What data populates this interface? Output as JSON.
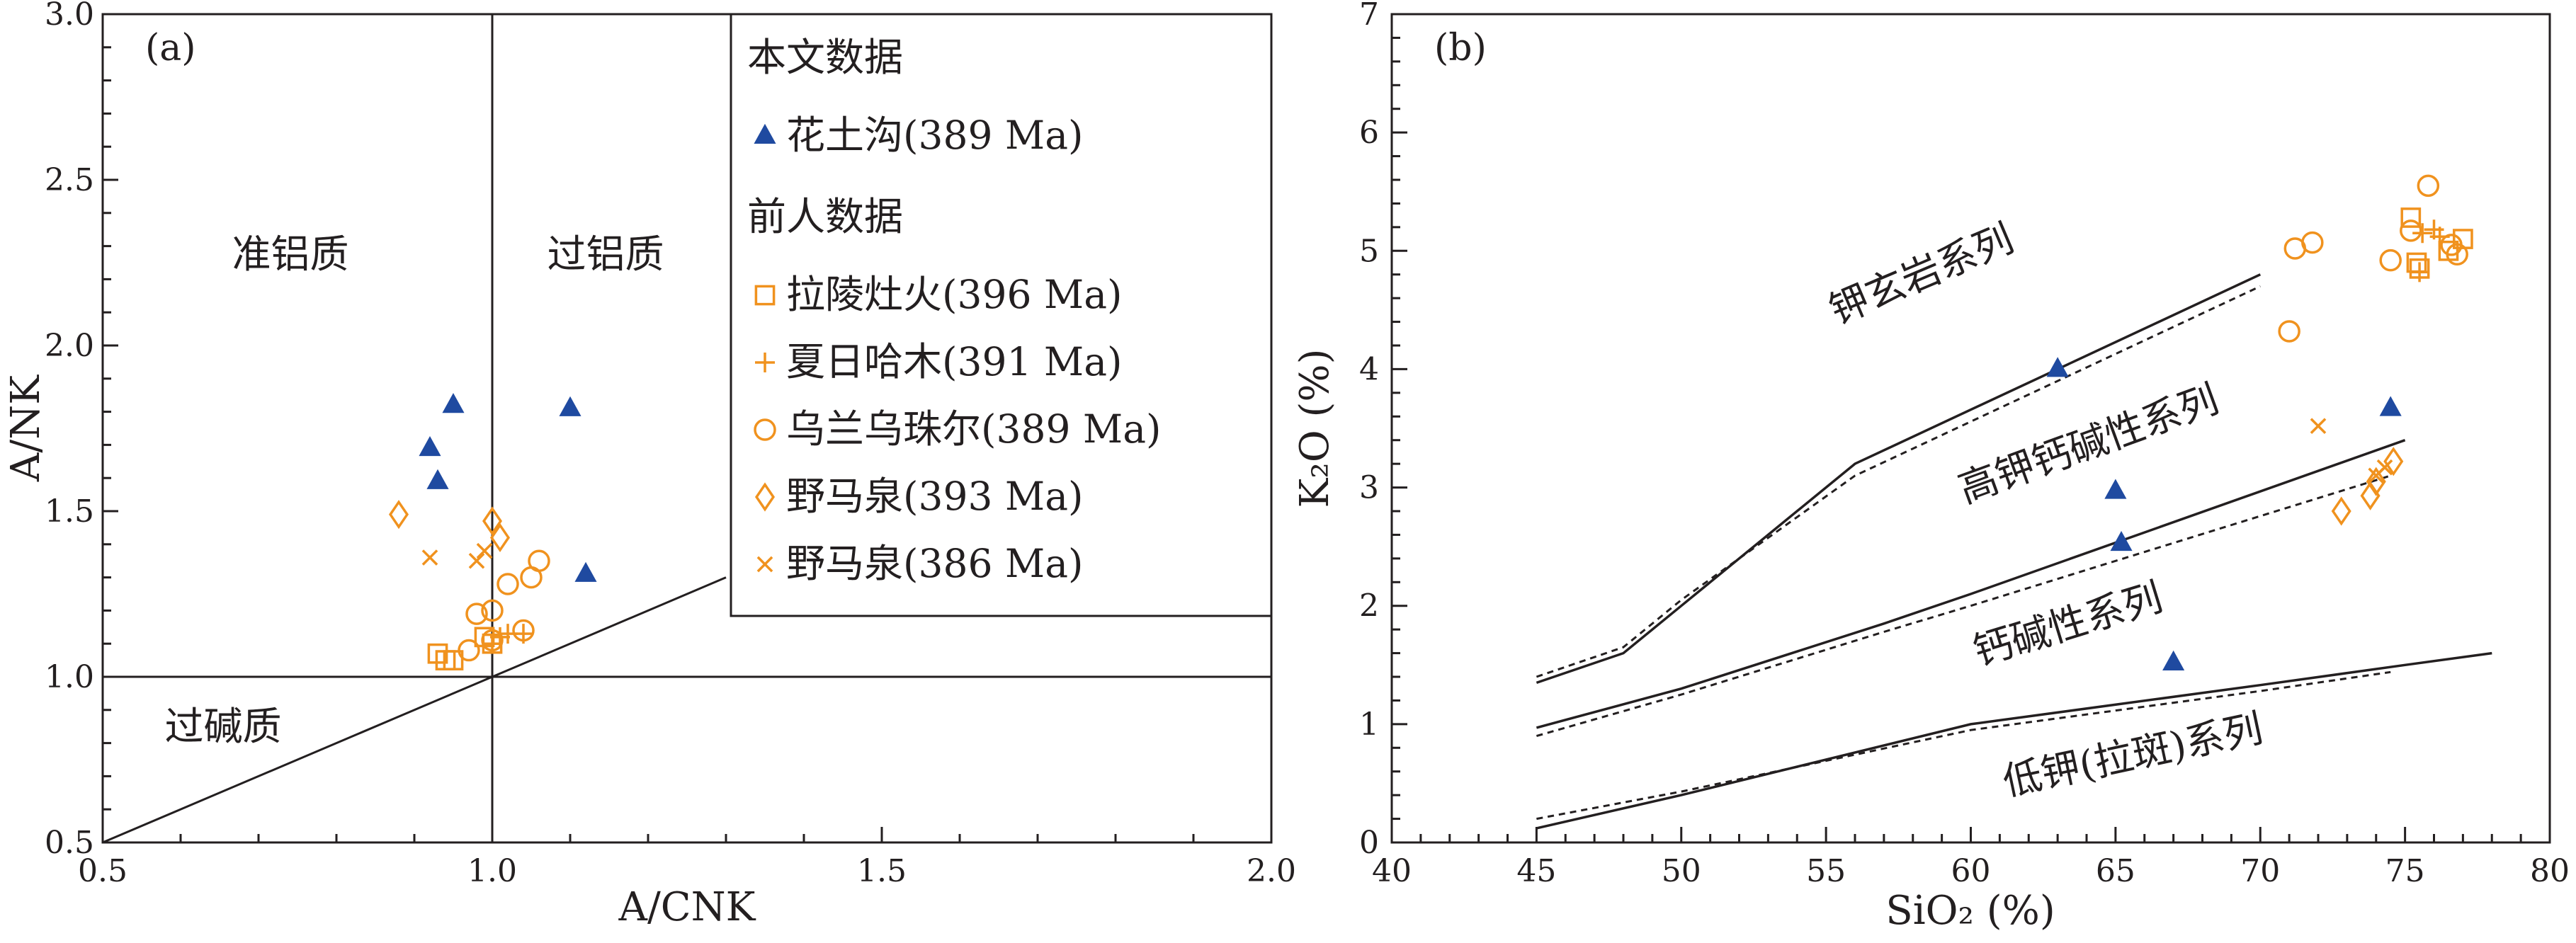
{
  "colors": {
    "this_study": "#1f4aa0",
    "previous": "#f0921e",
    "ink": "#231f20"
  },
  "chart_data": [
    {
      "type": "scatter",
      "panel_label": "(a)",
      "xlabel": "A/CNK",
      "ylabel": "A/NK",
      "xlim": [
        0.5,
        2.0
      ],
      "ylim": [
        0.5,
        3.0
      ],
      "x_ticks": [
        "0.5",
        "1.0",
        "1.5",
        "2.0"
      ],
      "y_ticks": [
        "0.5",
        "1.0",
        "1.5",
        "2.0",
        "2.5",
        "3.0"
      ],
      "region_labels": [
        "准铝质",
        "过铝质",
        "过碱质"
      ],
      "legend": {
        "position": "top-right",
        "group_headers": [
          "本文数据",
          "前人数据"
        ],
        "entries": [
          "花土沟(389 Ma)",
          "拉陵灶火(396 Ma)",
          "夏日哈木(391 Ma)",
          "乌兰乌珠尔(389 Ma)",
          "野马泉(393 Ma)",
          "野马泉(386 Ma)"
        ]
      },
      "series": [
        {
          "name": "花土沟(389 Ma)",
          "marker": "triangle",
          "points": [
            [
              0.92,
              1.69
            ],
            [
              0.95,
              1.82
            ],
            [
              0.93,
              1.59
            ],
            [
              1.1,
              1.81
            ],
            [
              1.12,
              1.31
            ]
          ]
        },
        {
          "name": "拉陵灶火(396 Ma)",
          "marker": "square",
          "points": [
            [
              0.94,
              1.05
            ],
            [
              0.95,
              1.05
            ],
            [
              0.93,
              1.07
            ],
            [
              0.99,
              1.12
            ],
            [
              1.0,
              1.1
            ]
          ]
        },
        {
          "name": "夏日哈木(391 Ma)",
          "marker": "plus",
          "points": [
            [
              1.01,
              1.12
            ],
            [
              1.0,
              1.1
            ],
            [
              1.02,
              1.13
            ],
            [
              1.04,
              1.13
            ]
          ]
        },
        {
          "name": "乌兰乌珠尔(389 Ma)",
          "marker": "circle",
          "points": [
            [
              0.97,
              1.08
            ],
            [
              0.98,
              1.19
            ],
            [
              1.0,
              1.2
            ],
            [
              1.02,
              1.28
            ],
            [
              1.05,
              1.3
            ],
            [
              1.06,
              1.35
            ],
            [
              1.04,
              1.14
            ],
            [
              1.0,
              1.11
            ]
          ]
        },
        {
          "name": "野马泉(393 Ma)",
          "marker": "diamond",
          "points": [
            [
              0.88,
              1.49
            ],
            [
              1.0,
              1.47
            ],
            [
              1.01,
              1.42
            ]
          ]
        },
        {
          "name": "野马泉(386 Ma)",
          "marker": "cross",
          "points": [
            [
              0.92,
              1.36
            ],
            [
              0.98,
              1.35
            ],
            [
              0.99,
              1.38
            ]
          ]
        }
      ]
    },
    {
      "type": "scatter",
      "panel_label": "(b)",
      "xlabel": "SiO₂ (%)",
      "ylabel": "K₂O (%)",
      "xlim": [
        40,
        80
      ],
      "ylim": [
        0,
        7
      ],
      "x_ticks": [
        "40",
        "45",
        "50",
        "55",
        "60",
        "65",
        "70",
        "75",
        "80"
      ],
      "y_ticks": [
        "0",
        "1",
        "2",
        "3",
        "4",
        "5",
        "6",
        "7"
      ],
      "series_labels": [
        "钾玄岩系列",
        "高钾钙碱性系列",
        "钙碱性系列",
        "低钾(拉斑)系列"
      ],
      "boundaries": {
        "solid": [
          [
            [
              45,
              1.35
            ],
            [
              48,
              1.6
            ],
            [
              50,
              2.0
            ],
            [
              56,
              3.2
            ],
            [
              70,
              4.8
            ]
          ],
          [
            [
              45,
              0.97
            ],
            [
              50,
              1.3
            ],
            [
              57,
              1.85
            ],
            [
              60,
              2.1
            ],
            [
              75,
              3.4
            ]
          ],
          [
            [
              45,
              0.12
            ],
            [
              50,
              0.4
            ],
            [
              60,
              1.0
            ],
            [
              70,
              1.33
            ],
            [
              75,
              1.5
            ],
            [
              78,
              1.6
            ]
          ]
        ],
        "dashed": [
          [
            [
              45,
              1.4
            ],
            [
              48,
              1.65
            ],
            [
              50,
              2.05
            ],
            [
              56,
              3.1
            ],
            [
              70,
              4.7
            ]
          ],
          [
            [
              45,
              0.9
            ],
            [
              50,
              1.25
            ],
            [
              57,
              1.78
            ],
            [
              60,
              2.0
            ],
            [
              74.5,
              3.1
            ]
          ],
          [
            [
              45,
              0.2
            ],
            [
              50,
              0.43
            ],
            [
              60,
              0.95
            ],
            [
              70,
              1.28
            ],
            [
              74.5,
              1.44
            ]
          ]
        ]
      },
      "series": [
        {
          "name": "花土沟(389 Ma)",
          "marker": "triangle",
          "points": [
            [
              63,
              4.0
            ],
            [
              65,
              2.97
            ],
            [
              65.2,
              2.53
            ],
            [
              67,
              1.52
            ],
            [
              74.5,
              3.67
            ]
          ]
        },
        {
          "name": "拉陵灶火(396 Ma)",
          "marker": "square",
          "points": [
            [
              75.2,
              5.28
            ],
            [
              75.4,
              4.9
            ],
            [
              75.5,
              4.85
            ],
            [
              76.5,
              5.0
            ],
            [
              77,
              5.1
            ]
          ]
        },
        {
          "name": "夏日哈木(391 Ma)",
          "marker": "plus",
          "points": [
            [
              75.6,
              5.15
            ],
            [
              76,
              5.18
            ],
            [
              76.2,
              5.12
            ],
            [
              75.5,
              4.82
            ]
          ]
        },
        {
          "name": "乌兰乌珠尔(389 Ma)",
          "marker": "circle",
          "points": [
            [
              71,
              4.32
            ],
            [
              71.2,
              5.02
            ],
            [
              71.8,
              5.07
            ],
            [
              74.5,
              4.92
            ],
            [
              75.8,
              5.55
            ],
            [
              75.2,
              5.17
            ],
            [
              76.6,
              5.05
            ],
            [
              76.8,
              4.97
            ]
          ]
        },
        {
          "name": "野马泉(393 Ma)",
          "marker": "diamond",
          "points": [
            [
              72.8,
              2.8
            ],
            [
              73.8,
              2.93
            ],
            [
              74,
              3.05
            ],
            [
              74.6,
              3.22
            ]
          ]
        },
        {
          "name": "野马泉(386 Ma)",
          "marker": "cross",
          "points": [
            [
              72,
              3.52
            ],
            [
              74,
              3.1
            ],
            [
              74.3,
              3.17
            ]
          ]
        }
      ]
    }
  ]
}
